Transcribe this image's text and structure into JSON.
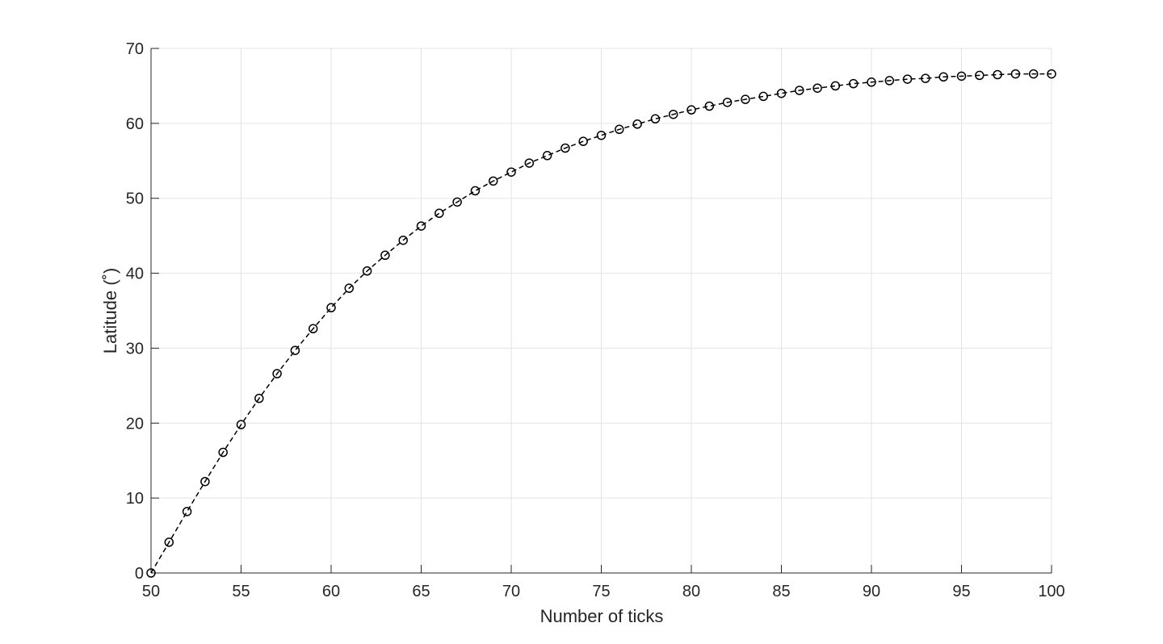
{
  "chart_data": {
    "type": "line",
    "title": "",
    "xlabel": "Number of ticks",
    "ylabel": "Latitude (˚)",
    "xlim": [
      50,
      100
    ],
    "ylim": [
      0,
      70
    ],
    "xticks": [
      50,
      55,
      60,
      65,
      70,
      75,
      80,
      85,
      90,
      95,
      100
    ],
    "yticks": [
      0,
      10,
      20,
      30,
      40,
      50,
      60,
      70
    ],
    "xtick_labels": [
      "50",
      "55",
      "60",
      "65",
      "70",
      "75",
      "80",
      "85",
      "90",
      "95",
      "100"
    ],
    "ytick_labels": [
      "0",
      "10",
      "20",
      "30",
      "40",
      "50",
      "60",
      "70"
    ],
    "grid": true,
    "line_style": "dashed",
    "marker": "circle",
    "series_color": "#000000",
    "series": [
      {
        "x": [
          50,
          51,
          52,
          53,
          54,
          55,
          56,
          57,
          58,
          59,
          60,
          61,
          62,
          63,
          64,
          65,
          66,
          67,
          68,
          69,
          70,
          71,
          72,
          73,
          74,
          75,
          76,
          77,
          78,
          79,
          80,
          81,
          82,
          83,
          84,
          85,
          86,
          87,
          88,
          89,
          90,
          91,
          92,
          93,
          94,
          95,
          96,
          97,
          98,
          99,
          100
        ],
        "values": [
          0,
          4.1,
          8.2,
          12.2,
          16.1,
          19.8,
          23.3,
          26.6,
          29.7,
          32.6,
          35.4,
          38.0,
          40.3,
          42.4,
          44.4,
          46.3,
          48.0,
          49.5,
          51.0,
          52.3,
          53.5,
          54.7,
          55.7,
          56.7,
          57.6,
          58.4,
          59.2,
          59.9,
          60.6,
          61.2,
          61.8,
          62.3,
          62.8,
          63.2,
          63.6,
          64.0,
          64.4,
          64.7,
          65.0,
          65.3,
          65.5,
          65.7,
          65.9,
          66.0,
          66.2,
          66.3,
          66.4,
          66.5,
          66.6,
          66.6,
          66.6
        ]
      }
    ]
  }
}
